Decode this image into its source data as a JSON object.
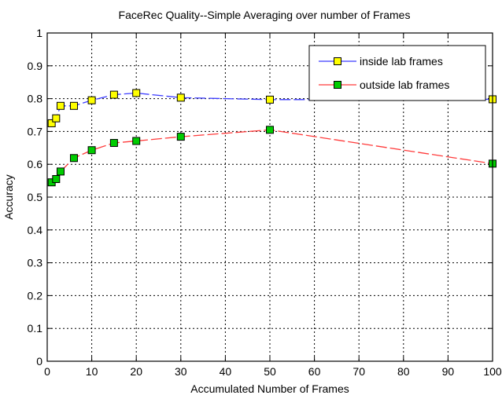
{
  "chart_data": {
    "type": "line",
    "title": "FaceRec Quality--Simple Averaging over number of Frames",
    "xlabel": "Accumulated Number of Frames",
    "ylabel": "Accuracy",
    "xlim": [
      0,
      100
    ],
    "ylim": [
      0,
      1
    ],
    "x_ticks": [
      0,
      10,
      20,
      30,
      40,
      50,
      60,
      70,
      80,
      90,
      100
    ],
    "y_ticks": [
      0,
      0.1,
      0.2,
      0.3,
      0.4,
      0.5,
      0.6,
      0.7,
      0.8,
      0.9,
      1
    ],
    "grid": true,
    "legend_position": "top-right",
    "series": [
      {
        "name": "inside lab frames",
        "line_color": "#3b3bff",
        "marker_color": "#ffff00",
        "x": [
          1,
          2,
          3,
          6,
          10,
          15,
          20,
          30,
          50,
          100
        ],
        "y": [
          0.725,
          0.74,
          0.778,
          0.778,
          0.795,
          0.812,
          0.817,
          0.803,
          0.797,
          0.798
        ]
      },
      {
        "name": "outside lab frames",
        "line_color": "#ff3b3b",
        "marker_color": "#00cc00",
        "x": [
          1,
          2,
          3,
          6,
          10,
          15,
          20,
          30,
          50,
          100
        ],
        "y": [
          0.545,
          0.555,
          0.578,
          0.619,
          0.643,
          0.665,
          0.671,
          0.684,
          0.705,
          0.602
        ]
      }
    ]
  }
}
